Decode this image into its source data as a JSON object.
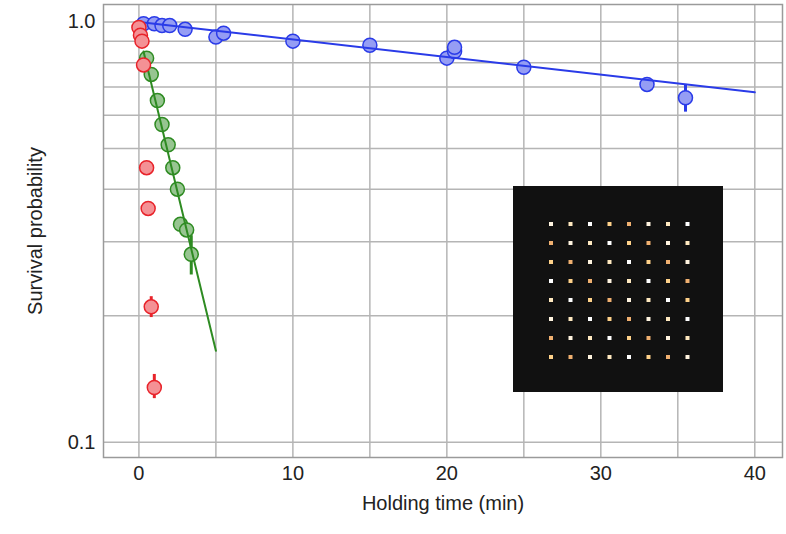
{
  "chart_data": {
    "type": "scatter",
    "x_label": "Holding time (min)",
    "y_label": "Survival probability",
    "log": "y",
    "grid": true,
    "xlim": [
      -2.3,
      41.8
    ],
    "ylim": [
      0.092,
      1.1
    ],
    "xticks": [
      0,
      10,
      20,
      30,
      40
    ],
    "yticks": [
      0.1,
      {
        "value": 1,
        "label": "1.0"
      }
    ],
    "series": [
      {
        "type": "scatter",
        "color": "#2a3be8",
        "marker": "circle",
        "x": [
          0.3,
          1,
          1.5,
          2,
          3,
          5,
          5.5,
          10,
          15,
          20,
          20.5,
          20.5,
          25,
          33,
          35.5
        ],
        "values": [
          0.99,
          0.99,
          0.98,
          0.98,
          0.96,
          0.92,
          0.94,
          0.9,
          0.88,
          0.82,
          0.85,
          0.87,
          0.78,
          0.71,
          0.66
        ],
        "error": [
          null,
          null,
          null,
          null,
          null,
          null,
          null,
          null,
          null,
          null,
          null,
          null,
          null,
          null,
          [
            0.61,
            0.71
          ]
        ]
      },
      {
        "type": "line",
        "color": "#2a3be8",
        "line_style": "solid",
        "x": [
          0,
          40
        ],
        "values": [
          1.0,
          0.68
        ]
      },
      {
        "type": "scatter",
        "color": "#2e8b22",
        "marker": "circle",
        "x": [
          0.5,
          0.8,
          1.2,
          1.5,
          1.9,
          2.2,
          2.5,
          2.7,
          3.1,
          3.4
        ],
        "values": [
          0.82,
          0.75,
          0.65,
          0.57,
          0.51,
          0.45,
          0.4,
          0.33,
          0.32,
          0.28
        ],
        "error": [
          null,
          null,
          null,
          null,
          null,
          null,
          null,
          null,
          null,
          [
            0.25,
            0.31
          ]
        ]
      },
      {
        "type": "line",
        "color": "#2e8b22",
        "line_style": "solid",
        "x": [
          0.3,
          5
        ],
        "values": [
          0.85,
          0.165
        ]
      },
      {
        "type": "scatter",
        "color": "#e8232a",
        "marker": "circle",
        "x": [
          0,
          0.1,
          0.2,
          0.3,
          0.5,
          0.6,
          0.8,
          1.0
        ],
        "values": [
          0.97,
          0.93,
          0.9,
          0.79,
          0.45,
          0.36,
          0.21,
          0.135
        ],
        "error": [
          null,
          null,
          null,
          null,
          null,
          null,
          [
            0.198,
            0.222
          ],
          [
            0.127,
            0.145
          ]
        ]
      }
    ]
  }
}
